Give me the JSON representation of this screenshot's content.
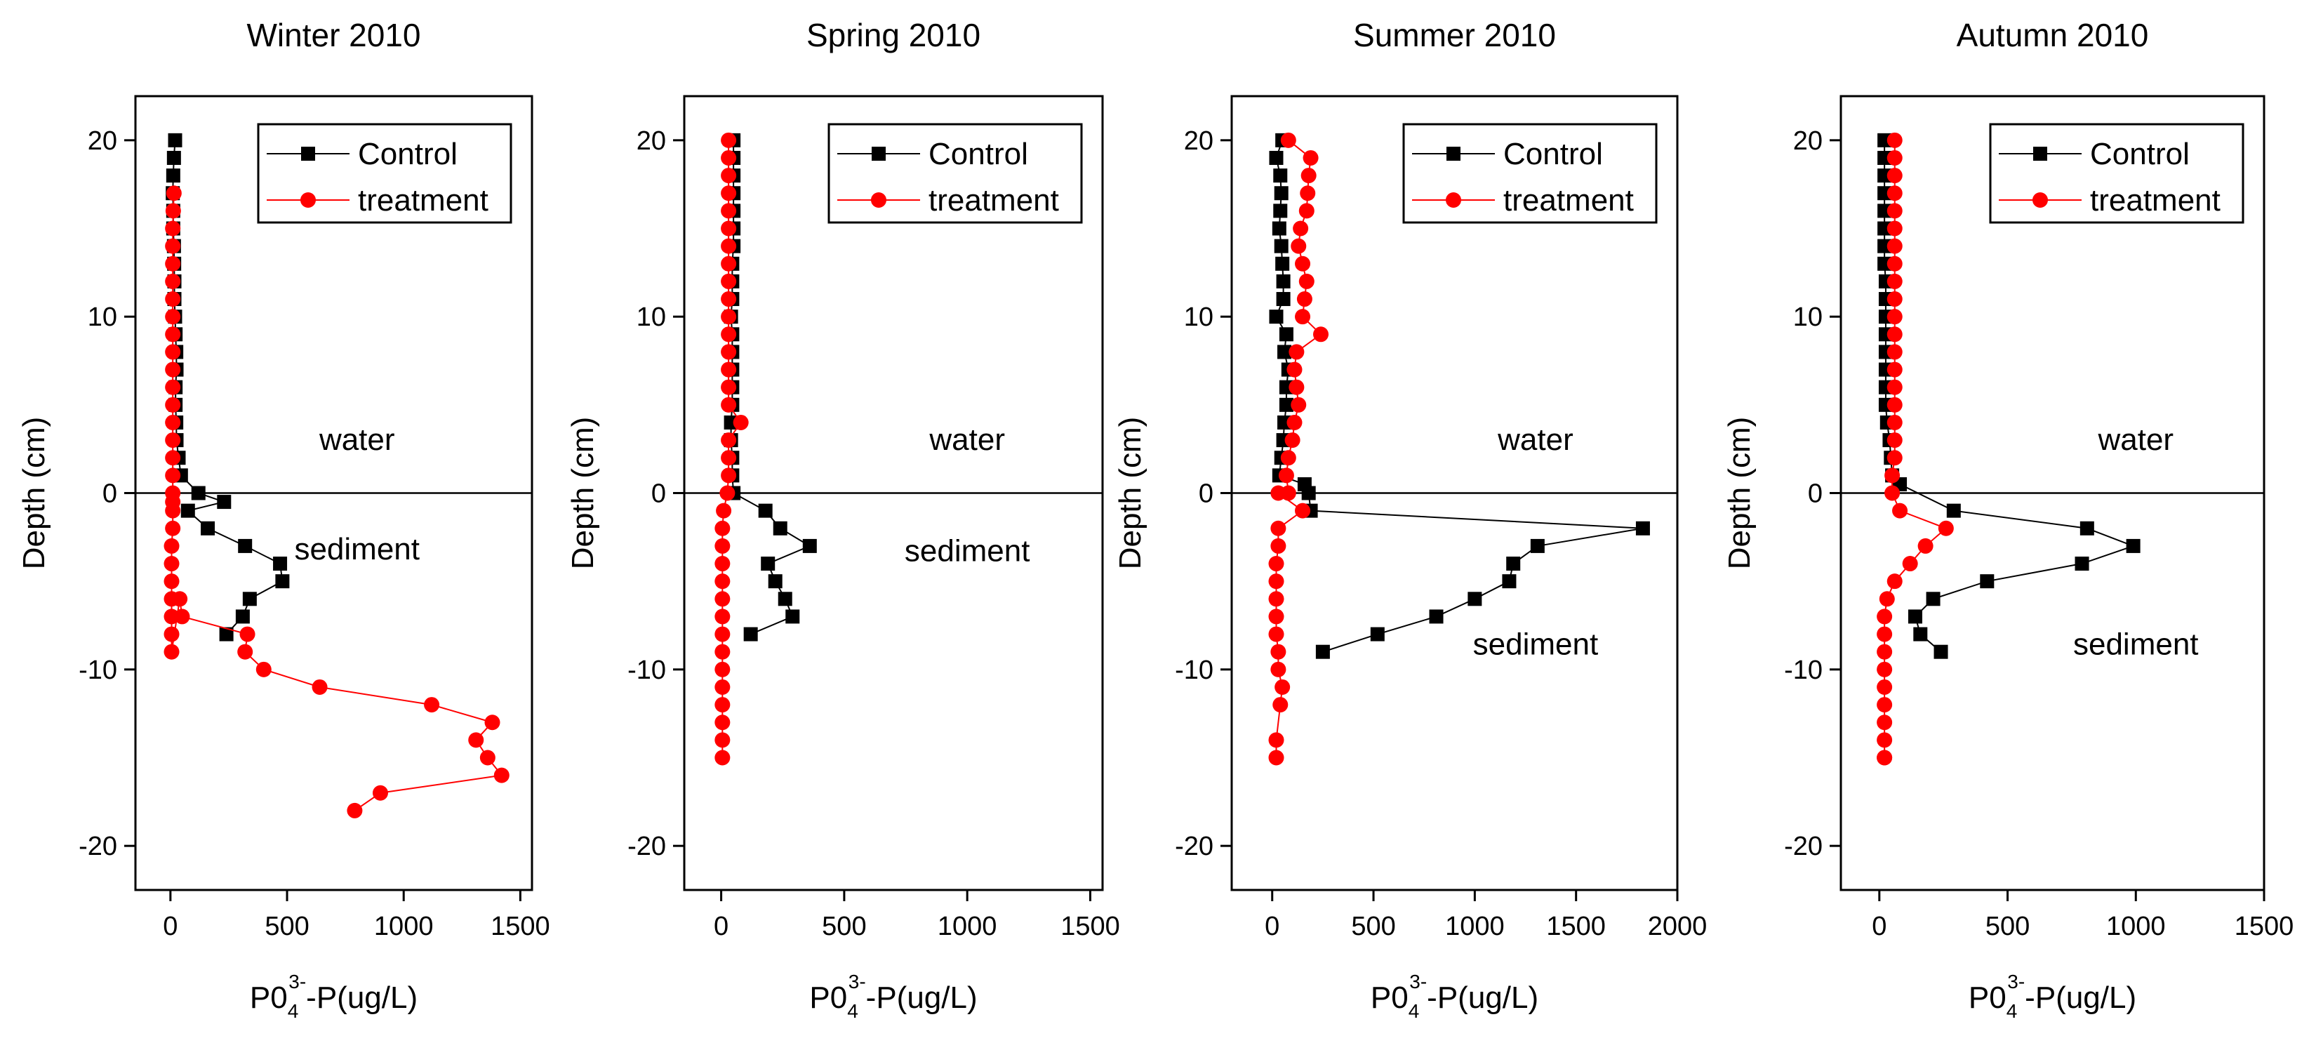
{
  "chart_data": [
    {
      "type": "scatter",
      "title": "Winter 2010",
      "xlabel": "P0",
      "xlabel_sub": "4",
      "xlabel_sup": "3-",
      "xlabel_tail": "-P(ug/L)",
      "ylabel": "Depth (cm)",
      "xlim": [
        -150,
        1550
      ],
      "ylim": [
        -22.5,
        22.5
      ],
      "xticks": [
        0,
        500,
        1000,
        1500
      ],
      "yticks": [
        20,
        10,
        0,
        -10,
        -20
      ],
      "reference_line_y": 0,
      "legend_position": "top-right",
      "annotations": [
        {
          "text": "water",
          "x": 800,
          "y": 3
        },
        {
          "text": "sediment",
          "x": 800,
          "y": -3.2
        }
      ],
      "series": [
        {
          "name": "Control",
          "color": "#000000",
          "marker": "square",
          "x": [
            20,
            15,
            12,
            10,
            12,
            12,
            15,
            16,
            17,
            17,
            20,
            22,
            25,
            26,
            22,
            22,
            25,
            26,
            35,
            45,
            120,
            230,
            75,
            160,
            320,
            470,
            480,
            340,
            310,
            240
          ],
          "y": [
            20,
            19,
            18,
            17,
            16,
            15,
            14,
            13,
            12,
            11,
            10,
            9,
            8,
            7,
            6,
            5,
            4,
            3,
            2,
            1,
            0,
            -0.5,
            -1,
            -2,
            -3,
            -4,
            -5,
            -6,
            -7,
            -8
          ]
        },
        {
          "name": "treatment",
          "color": "#ff0000",
          "marker": "circle",
          "x": [
            15,
            12,
            10,
            10,
            10,
            10,
            10,
            10,
            10,
            10,
            10,
            10,
            10,
            10,
            10,
            10,
            10,
            10,
            10,
            10,
            10,
            5,
            5,
            5,
            5,
            5,
            5,
            5,
            40,
            50,
            330,
            320,
            400,
            640,
            1120,
            1380,
            1310,
            1360,
            1420,
            900,
            790
          ],
          "y": [
            17,
            16,
            15,
            14,
            13,
            12,
            11,
            10,
            9,
            8,
            7,
            6,
            5,
            4,
            3,
            2,
            1,
            0,
            -0.5,
            -1,
            -2,
            -3,
            -4,
            -5,
            -6,
            -7,
            -8,
            -9,
            -6,
            -7,
            -8,
            -9,
            -10,
            -11,
            -12,
            -13,
            -14,
            -15,
            -16,
            -17,
            -18
          ]
        }
      ]
    },
    {
      "type": "scatter",
      "title": "Spring 2010",
      "xlabel": "P0",
      "xlabel_sub": "4",
      "xlabel_sup": "3-",
      "xlabel_tail": "-P(ug/L)",
      "ylabel": "Depth (cm)",
      "xlim": [
        -150,
        1550
      ],
      "ylim": [
        -22.5,
        22.5
      ],
      "xticks": [
        0,
        500,
        1000,
        1500
      ],
      "yticks": [
        20,
        10,
        0,
        -10,
        -20
      ],
      "reference_line_y": 0,
      "legend_position": "top-right",
      "annotations": [
        {
          "text": "water",
          "x": 1000,
          "y": 3
        },
        {
          "text": "sediment",
          "x": 1000,
          "y": -3.3
        }
      ],
      "series": [
        {
          "name": "Control",
          "color": "#000000",
          "marker": "square",
          "x": [
            50,
            50,
            50,
            50,
            50,
            50,
            50,
            45,
            45,
            45,
            40,
            45,
            45,
            45,
            45,
            45,
            40,
            40,
            45,
            45,
            50,
            180,
            240,
            360,
            190,
            220,
            260,
            290,
            120
          ],
          "y": [
            20,
            19,
            18,
            17,
            16,
            15,
            14,
            13,
            12,
            11,
            10,
            9,
            8,
            7,
            6,
            5,
            4,
            3,
            2,
            1,
            0,
            -1,
            -2,
            -3,
            -4,
            -5,
            -6,
            -7,
            -8
          ]
        },
        {
          "name": "treatment",
          "color": "#ff0000",
          "marker": "circle",
          "x": [
            30,
            30,
            30,
            30,
            30,
            30,
            30,
            30,
            30,
            30,
            30,
            30,
            30,
            30,
            30,
            30,
            80,
            30,
            30,
            30,
            25,
            10,
            5,
            5,
            5,
            5,
            5,
            5,
            5,
            5,
            5,
            5,
            5,
            5,
            5,
            5
          ],
          "y": [
            20,
            19,
            18,
            17,
            16,
            15,
            14,
            13,
            12,
            11,
            10,
            9,
            8,
            7,
            6,
            5,
            4,
            3,
            2,
            1,
            0,
            -1,
            -2,
            -3,
            -4,
            -5,
            -6,
            -7,
            -8,
            -9,
            -10,
            -11,
            -12,
            -13,
            -14,
            -15
          ]
        }
      ]
    },
    {
      "type": "scatter",
      "title": "Summer 2010",
      "xlabel": "P0",
      "xlabel_sub": "4",
      "xlabel_sup": "3-",
      "xlabel_tail": "-P(ug/L)",
      "ylabel": "Depth (cm)",
      "xlim": [
        -200,
        2000
      ],
      "ylim": [
        -22.5,
        22.5
      ],
      "xticks": [
        0,
        500,
        1000,
        1500,
        2000
      ],
      "yticks": [
        20,
        10,
        0,
        -10,
        -20
      ],
      "reference_line_y": 0,
      "legend_position": "top-right",
      "annotations": [
        {
          "text": "water",
          "x": 1300,
          "y": 3
        },
        {
          "text": "sediment",
          "x": 1300,
          "y": -8.6
        }
      ],
      "series": [
        {
          "name": "Control",
          "color": "#000000",
          "marker": "square",
          "x": [
            50,
            20,
            40,
            45,
            40,
            35,
            45,
            50,
            55,
            55,
            20,
            70,
            60,
            80,
            70,
            70,
            60,
            55,
            45,
            35,
            160,
            180,
            190,
            1830,
            1310,
            1190,
            1170,
            1000,
            810,
            520,
            250
          ],
          "y": [
            20,
            19,
            18,
            17,
            16,
            15,
            14,
            13,
            12,
            11,
            10,
            9,
            8,
            7,
            6,
            5,
            4,
            3,
            2,
            1,
            0.5,
            0,
            -1,
            -2,
            -3,
            -4,
            -5,
            -6,
            -7,
            -8,
            -9
          ]
        },
        {
          "name": "treatment",
          "color": "#ff0000",
          "marker": "circle",
          "x": [
            80,
            190,
            180,
            175,
            170,
            140,
            130,
            150,
            170,
            160,
            150,
            240,
            120,
            110,
            120,
            130,
            110,
            100,
            80,
            70,
            80,
            30,
            150,
            30,
            30,
            20,
            20,
            20,
            20,
            20,
            30,
            30,
            50,
            40,
            20,
            20
          ],
          "y": [
            20,
            19,
            18,
            17,
            16,
            15,
            14,
            13,
            12,
            11,
            10,
            9,
            8,
            7,
            6,
            5,
            4,
            3,
            2,
            1,
            0,
            0,
            -1,
            -2,
            -3,
            -4,
            -5,
            -6,
            -7,
            -8,
            -9,
            -10,
            -11,
            -12,
            -14,
            -15
          ]
        }
      ]
    },
    {
      "type": "scatter",
      "title": "Autumn 2010",
      "xlabel": "P0",
      "xlabel_sub": "4",
      "xlabel_sup": "3-",
      "xlabel_tail": "-P(ug/L)",
      "ylabel": "Depth (cm)",
      "xlim": [
        -150,
        1500
      ],
      "ylim": [
        -22.5,
        22.5
      ],
      "xticks": [
        0,
        500,
        1000,
        1500
      ],
      "yticks": [
        20,
        10,
        0,
        -10,
        -20
      ],
      "reference_line_y": 0,
      "legend_position": "top-right",
      "annotations": [
        {
          "text": "water",
          "x": 1000,
          "y": 3
        },
        {
          "text": "sediment",
          "x": 1000,
          "y": -8.6
        }
      ],
      "series": [
        {
          "name": "Control",
          "color": "#000000",
          "marker": "square",
          "x": [
            20,
            20,
            20,
            20,
            20,
            20,
            20,
            20,
            25,
            25,
            25,
            25,
            25,
            25,
            25,
            25,
            30,
            40,
            45,
            50,
            80,
            290,
            810,
            990,
            790,
            420,
            210,
            140,
            160,
            240
          ],
          "y": [
            20,
            19,
            18,
            17,
            16,
            15,
            14,
            13,
            12,
            11,
            10,
            9,
            8,
            7,
            6,
            5,
            4,
            3,
            2,
            1,
            0.5,
            -1,
            -2,
            -3,
            -4,
            -5,
            -6,
            -7,
            -8,
            -9
          ]
        },
        {
          "name": "treatment",
          "color": "#ff0000",
          "marker": "circle",
          "x": [
            60,
            60,
            60,
            60,
            60,
            60,
            60,
            60,
            60,
            60,
            60,
            60,
            60,
            60,
            60,
            60,
            60,
            60,
            60,
            50,
            50,
            80,
            260,
            180,
            120,
            60,
            30,
            20,
            20,
            20,
            20,
            20,
            20,
            20,
            20,
            20,
            20
          ],
          "y": [
            20,
            19,
            18,
            17,
            16,
            15,
            14,
            13,
            12,
            11,
            10,
            9,
            8,
            7,
            6,
            5,
            4,
            3,
            2,
            1,
            0,
            -1,
            -2,
            -3,
            -4,
            -5,
            -6,
            -7,
            -8,
            -9,
            -10,
            -11,
            -12,
            -13,
            -14,
            -15,
            -15
          ]
        }
      ]
    }
  ]
}
